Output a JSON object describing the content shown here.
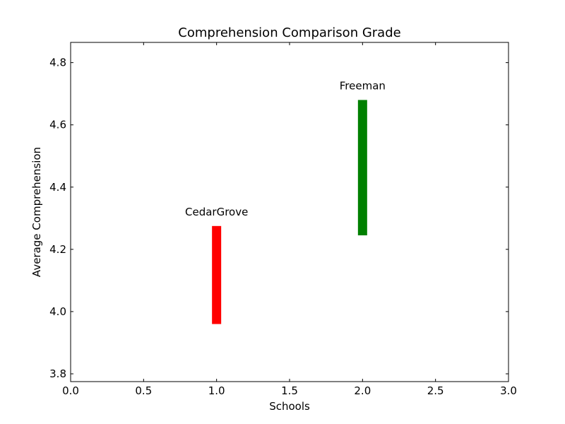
{
  "chart_data": {
    "type": "bar",
    "title": "Comprehension Comparison Grade",
    "xlabel": "Schools",
    "ylabel": "Average Comprehension",
    "xlim": [
      0.0,
      3.0
    ],
    "ylim": [
      3.775,
      4.865
    ],
    "x_ticks": [
      "0.0",
      "0.5",
      "1.0",
      "1.5",
      "2.0",
      "2.5",
      "3.0"
    ],
    "y_ticks": [
      "3.8",
      "4.0",
      "4.2",
      "4.4",
      "4.6",
      "4.8"
    ],
    "grid": false,
    "series": [
      {
        "name": "CedarGrove",
        "x": 1.0,
        "low": 3.96,
        "high": 4.275,
        "color": "#ff0000"
      },
      {
        "name": "Freeman",
        "x": 2.0,
        "low": 4.245,
        "high": 4.68,
        "color": "#008000"
      }
    ]
  }
}
